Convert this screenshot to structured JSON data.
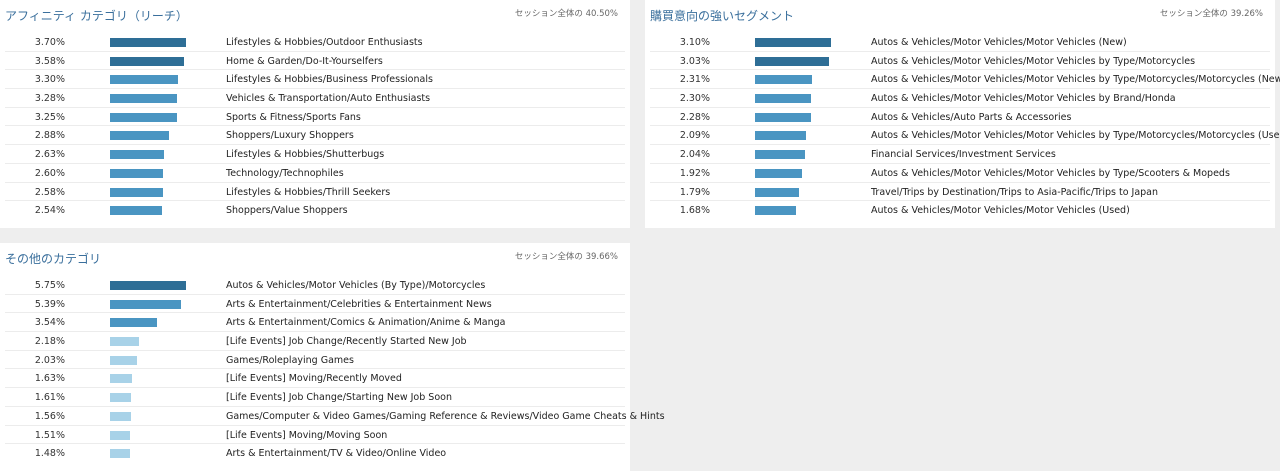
{
  "colors": {
    "title": "#3a6f9c",
    "bar_levels": [
      "#2e6e96",
      "#4a95c2",
      "#a8d2e8"
    ]
  },
  "panels": [
    {
      "title": "アフィニティ カテゴリ（リーチ）",
      "note": "セッション全体の 40.50%",
      "rows": [
        {
          "pct": "3.70%",
          "value": 3.7,
          "label": "Lifestyles & Hobbies/Outdoor Enthusiasts"
        },
        {
          "pct": "3.58%",
          "value": 3.58,
          "label": "Home & Garden/Do-It-Yourselfers"
        },
        {
          "pct": "3.30%",
          "value": 3.3,
          "label": "Lifestyles & Hobbies/Business Professionals"
        },
        {
          "pct": "3.28%",
          "value": 3.28,
          "label": "Vehicles & Transportation/Auto Enthusiasts"
        },
        {
          "pct": "3.25%",
          "value": 3.25,
          "label": "Sports & Fitness/Sports Fans"
        },
        {
          "pct": "2.88%",
          "value": 2.88,
          "label": "Shoppers/Luxury Shoppers"
        },
        {
          "pct": "2.63%",
          "value": 2.63,
          "label": "Lifestyles & Hobbies/Shutterbugs"
        },
        {
          "pct": "2.60%",
          "value": 2.6,
          "label": "Technology/Technophiles"
        },
        {
          "pct": "2.58%",
          "value": 2.58,
          "label": "Lifestyles & Hobbies/Thrill Seekers"
        },
        {
          "pct": "2.54%",
          "value": 2.54,
          "label": "Shoppers/Value Shoppers"
        }
      ]
    },
    {
      "title": "購買意向の強いセグメント",
      "note": "セッション全体の 39.26%",
      "rows": [
        {
          "pct": "3.10%",
          "value": 3.1,
          "label": "Autos & Vehicles/Motor Vehicles/Motor Vehicles (New)"
        },
        {
          "pct": "3.03%",
          "value": 3.03,
          "label": "Autos & Vehicles/Motor Vehicles/Motor Vehicles by Type/Motorcycles"
        },
        {
          "pct": "2.31%",
          "value": 2.31,
          "label": "Autos & Vehicles/Motor Vehicles/Motor Vehicles by Type/Motorcycles/Motorcycles (New)"
        },
        {
          "pct": "2.30%",
          "value": 2.3,
          "label": "Autos & Vehicles/Motor Vehicles/Motor Vehicles by Brand/Honda"
        },
        {
          "pct": "2.28%",
          "value": 2.28,
          "label": "Autos & Vehicles/Auto Parts & Accessories"
        },
        {
          "pct": "2.09%",
          "value": 2.09,
          "label": "Autos & Vehicles/Motor Vehicles/Motor Vehicles by Type/Motorcycles/Motorcycles (Used)"
        },
        {
          "pct": "2.04%",
          "value": 2.04,
          "label": "Financial Services/Investment Services"
        },
        {
          "pct": "1.92%",
          "value": 1.92,
          "label": "Autos & Vehicles/Motor Vehicles/Motor Vehicles by Type/Scooters & Mopeds"
        },
        {
          "pct": "1.79%",
          "value": 1.79,
          "label": "Travel/Trips by Destination/Trips to Asia-Pacific/Trips to Japan"
        },
        {
          "pct": "1.68%",
          "value": 1.68,
          "label": "Autos & Vehicles/Motor Vehicles/Motor Vehicles (Used)"
        }
      ]
    },
    {
      "title": "その他のカテゴリ",
      "note": "セッション全体の 39.66%",
      "rows": [
        {
          "pct": "5.75%",
          "value": 5.75,
          "label": "Autos & Vehicles/Motor Vehicles (By Type)/Motorcycles"
        },
        {
          "pct": "5.39%",
          "value": 5.39,
          "label": "Arts & Entertainment/Celebrities & Entertainment News"
        },
        {
          "pct": "3.54%",
          "value": 3.54,
          "label": "Arts & Entertainment/Comics & Animation/Anime & Manga"
        },
        {
          "pct": "2.18%",
          "value": 2.18,
          "label": "[Life Events] Job Change/Recently Started New Job"
        },
        {
          "pct": "2.03%",
          "value": 2.03,
          "label": "Games/Roleplaying Games"
        },
        {
          "pct": "1.63%",
          "value": 1.63,
          "label": "[Life Events] Moving/Recently Moved"
        },
        {
          "pct": "1.61%",
          "value": 1.61,
          "label": "[Life Events] Job Change/Starting New Job Soon"
        },
        {
          "pct": "1.56%",
          "value": 1.56,
          "label": "Games/Computer & Video Games/Gaming Reference & Reviews/Video Game Cheats & Hints"
        },
        {
          "pct": "1.51%",
          "value": 1.51,
          "label": "[Life Events] Moving/Moving Soon"
        },
        {
          "pct": "1.48%",
          "value": 1.48,
          "label": "Arts & Entertainment/TV & Video/Online Video"
        }
      ]
    }
  ]
}
